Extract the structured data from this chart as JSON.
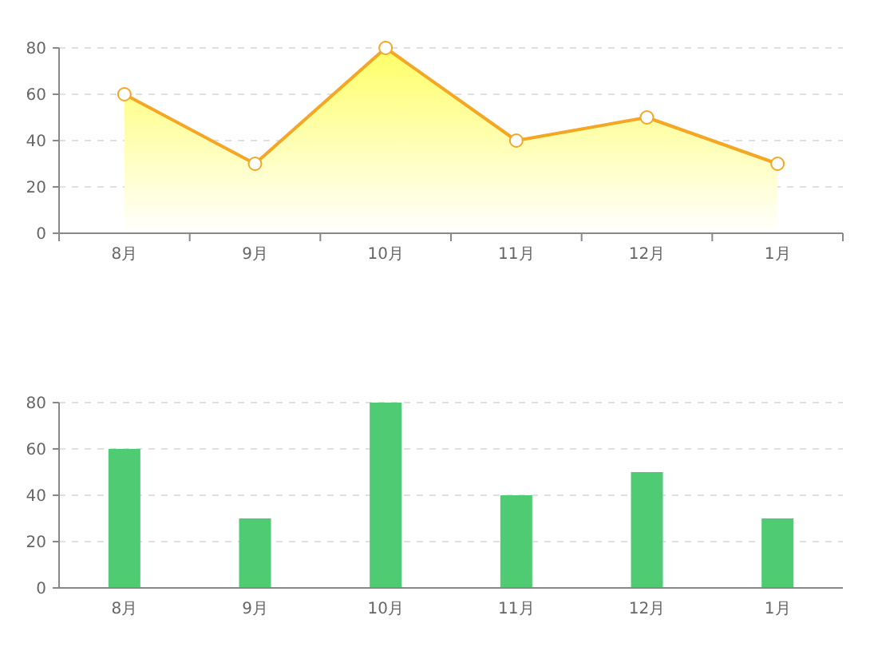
{
  "chart_data": [
    {
      "type": "area",
      "categories": [
        "8月",
        "9月",
        "10月",
        "11月",
        "12月",
        "1月"
      ],
      "series": [
        {
          "color": "#f5a623",
          "values": [
            60,
            30,
            80,
            40,
            50,
            30
          ]
        }
      ],
      "ylim": [
        0,
        80
      ],
      "yticks": [
        0,
        20,
        40,
        60,
        80
      ],
      "grid": "y",
      "marker": "circle"
    },
    {
      "type": "bar",
      "categories": [
        "8月",
        "9月",
        "10月",
        "11月",
        "12月",
        "1月"
      ],
      "values": [
        60,
        30,
        80,
        40,
        50,
        30
      ],
      "color": "#4fcb74",
      "ylim": [
        0,
        80
      ],
      "yticks": [
        0,
        20,
        40,
        60,
        80
      ],
      "grid": "y"
    }
  ]
}
